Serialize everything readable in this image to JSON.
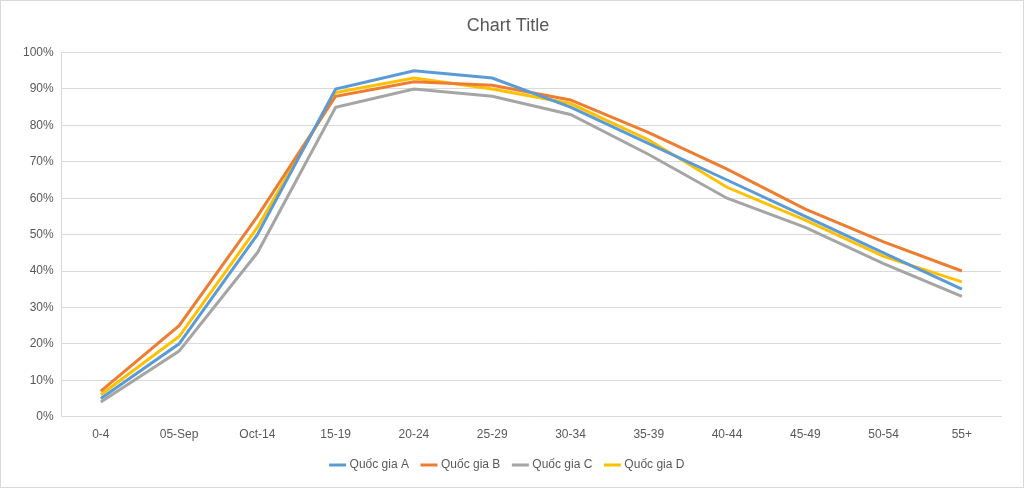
{
  "chart_data": {
    "type": "line",
    "title": "Chart Title",
    "categories": [
      "0-4",
      "05-Sep",
      "Oct-14",
      "15-19",
      "20-24",
      "25-29",
      "30-34",
      "35-39",
      "40-44",
      "45-49",
      "50-54",
      "55+"
    ],
    "series": [
      {
        "name": "Quốc gia A",
        "color": "#5b9bd5",
        "values": [
          5,
          20,
          50,
          90,
          95,
          93,
          85,
          75,
          65,
          55,
          45,
          35
        ]
      },
      {
        "name": "Quốc gia B",
        "color": "#ed7d31",
        "values": [
          7,
          25,
          55,
          88,
          92,
          91,
          87,
          78,
          68,
          57,
          48,
          40
        ]
      },
      {
        "name": "Quốc gia C",
        "color": "#a5a5a5",
        "values": [
          4,
          18,
          45,
          85,
          90,
          88,
          83,
          72,
          60,
          52,
          42,
          33
        ]
      },
      {
        "name": "Quốc gia D",
        "color": "#ffc000",
        "values": [
          6,
          22,
          52,
          89,
          93,
          90,
          86,
          76,
          63,
          54,
          44,
          37
        ]
      }
    ],
    "ylim": [
      0,
      100
    ],
    "yticks": [
      {
        "value": 0,
        "label": "0%"
      },
      {
        "value": 10,
        "label": "10%"
      },
      {
        "value": 20,
        "label": "20%"
      },
      {
        "value": 30,
        "label": "30%"
      },
      {
        "value": 40,
        "label": "40%"
      },
      {
        "value": 50,
        "label": "50%"
      },
      {
        "value": 60,
        "label": "60%"
      },
      {
        "value": 70,
        "label": "70%"
      },
      {
        "value": 80,
        "label": "80%"
      },
      {
        "value": 90,
        "label": "90%"
      },
      {
        "value": 100,
        "label": "100%"
      }
    ],
    "grid": true,
    "legend": "bottom",
    "marker": "none",
    "line_style": "solid"
  }
}
